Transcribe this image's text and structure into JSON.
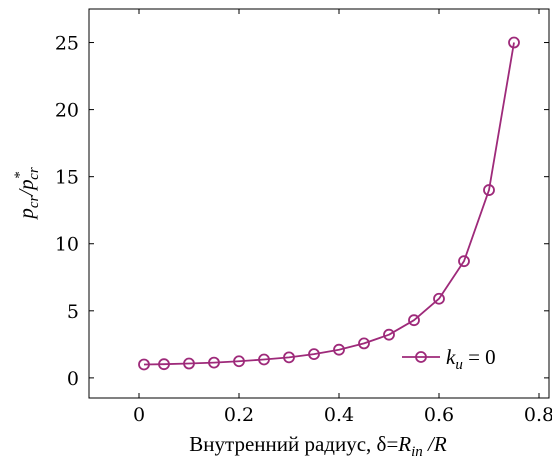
{
  "chart_data": {
    "type": "line",
    "title": "",
    "xlabel": "Внутренний радиус, δ=R in /R",
    "xlabel_parts": {
      "prefix": "Внутренний радиус, δ=",
      "var": "R",
      "sub": "in",
      "suffix": " /R"
    },
    "ylabel": "pcr/p*cr",
    "ylabel_parts": {
      "p1": "p",
      "sub1": "cr",
      "slash": "/",
      "p2": "p",
      "sup2": "*",
      "sub2": "cr"
    },
    "xlim": [
      -0.1,
      0.82
    ],
    "ylim": [
      -1.5,
      27.5
    ],
    "x_ticks": [
      0,
      0.2,
      0.4,
      0.6,
      0.8
    ],
    "x_tick_labels": [
      "0",
      "0.2",
      "0.4",
      "0.6",
      "0.8"
    ],
    "y_ticks": [
      0,
      5,
      10,
      15,
      20,
      25
    ],
    "y_tick_labels": [
      "0",
      "5",
      "10",
      "15",
      "20",
      "25"
    ],
    "grid": false,
    "legend_position": "bottom-right",
    "series": [
      {
        "name": "k_u = 0",
        "name_parts": {
          "var": "k",
          "sub": "u",
          "rest": " = 0"
        },
        "color": "#9e2a7a",
        "marker": "circle",
        "x": [
          0.01,
          0.05,
          0.1,
          0.15,
          0.2,
          0.25,
          0.3,
          0.35,
          0.4,
          0.45,
          0.5,
          0.55,
          0.6,
          0.65,
          0.7,
          0.75
        ],
        "y": [
          1.0,
          1.02,
          1.07,
          1.14,
          1.24,
          1.37,
          1.53,
          1.77,
          2.1,
          2.57,
          3.22,
          4.3,
          5.9,
          8.7,
          14.0,
          25.0
        ]
      }
    ]
  }
}
